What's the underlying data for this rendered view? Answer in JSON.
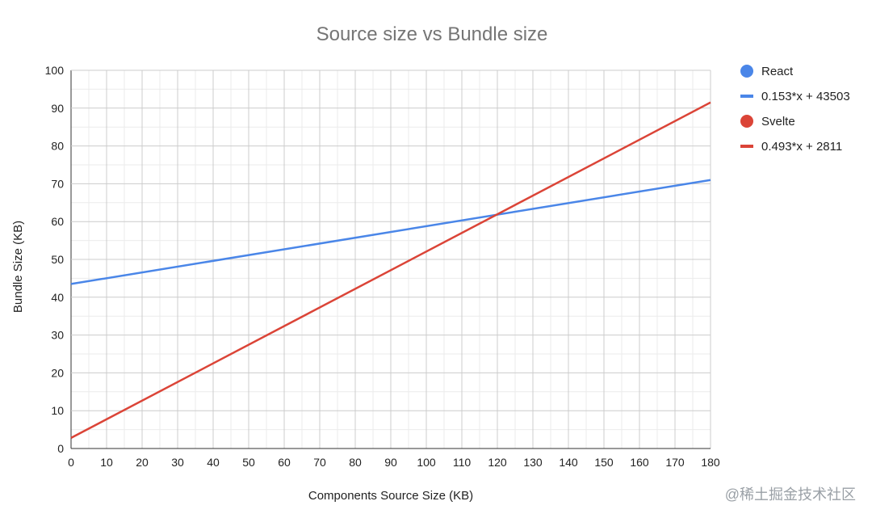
{
  "chart_data": {
    "type": "scatter",
    "title": "Source size vs Bundle size",
    "xlabel": "Components Source Size (KB)",
    "ylabel": "Bundle Size (KB)",
    "xlim": [
      0,
      180
    ],
    "ylim": [
      0,
      100
    ],
    "x_ticks": [
      "0",
      "10",
      "20",
      "30",
      "40",
      "50",
      "60",
      "70",
      "80",
      "90",
      "100",
      "110",
      "120",
      "130",
      "140",
      "150",
      "160",
      "170",
      "180"
    ],
    "y_ticks": [
      "0",
      "10",
      "20",
      "30",
      "40",
      "50",
      "60",
      "70",
      "80",
      "90",
      "100"
    ],
    "grid": true,
    "legend_position": "right",
    "series": [
      {
        "name": "React",
        "marker": "circle",
        "color": "#4a86e8",
        "x": [],
        "y": []
      },
      {
        "name": "Svelte",
        "marker": "circle",
        "color": "#db4437",
        "x": [],
        "y": []
      }
    ],
    "trendlines": [
      {
        "label": "0.153*x + 43503",
        "color": "#4a86e8",
        "x": [
          0,
          180
        ],
        "y": [
          43.5,
          71.0
        ]
      },
      {
        "label": "0.493*x + 2811",
        "color": "#db4437",
        "x": [
          0,
          180
        ],
        "y": [
          2.8,
          91.5
        ]
      }
    ]
  },
  "watermark": "@稀土掘金技术社区"
}
